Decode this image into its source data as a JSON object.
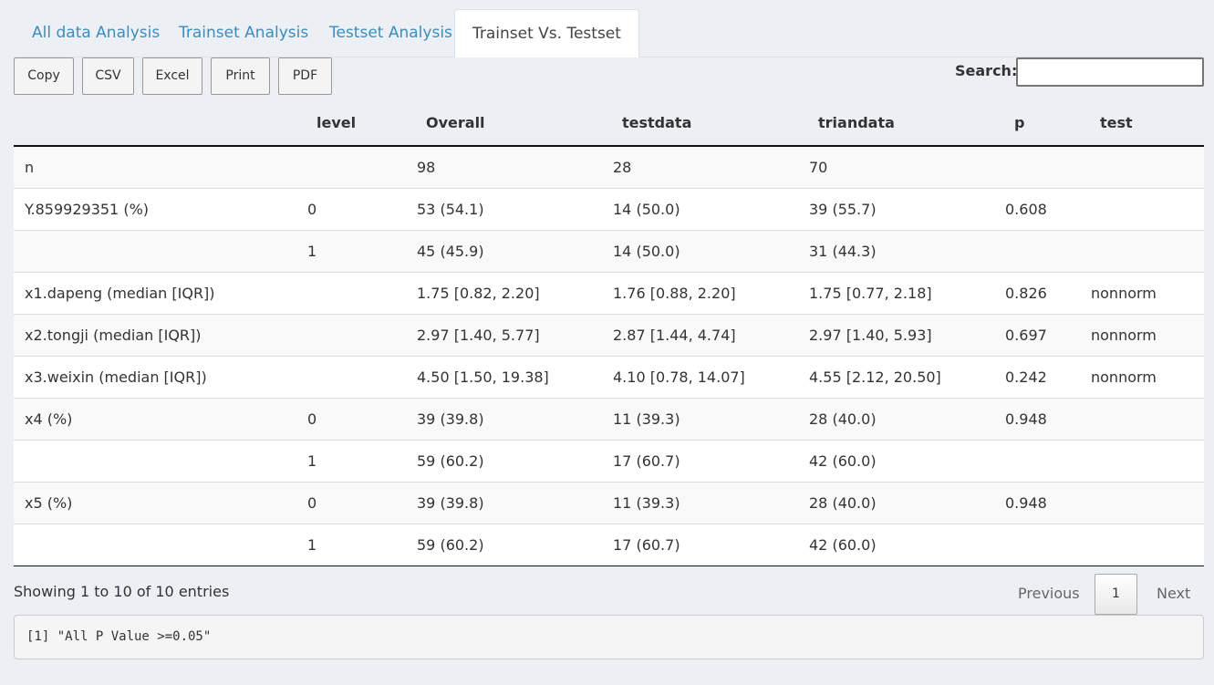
{
  "tabs": [
    {
      "label": "All data Analysis"
    },
    {
      "label": "Trainset Analysis"
    },
    {
      "label": "Testset Analysis"
    },
    {
      "label": "Trainset Vs. Testset",
      "active": true
    }
  ],
  "toolbar": {
    "buttons": [
      "Copy",
      "CSV",
      "Excel",
      "Print",
      "PDF"
    ],
    "search_label": "Search:",
    "search_value": ""
  },
  "table": {
    "columns": [
      "",
      "level",
      "Overall",
      "testdata",
      "triandata",
      "p",
      "test"
    ],
    "rows": [
      [
        "n",
        "",
        "98",
        "28",
        "70",
        "",
        ""
      ],
      [
        "Y.859929351 (%)",
        "0",
        "53 (54.1)",
        "14 (50.0)",
        "39 (55.7)",
        "0.608",
        ""
      ],
      [
        "",
        "1",
        "45 (45.9)",
        "14 (50.0)",
        "31 (44.3)",
        "",
        ""
      ],
      [
        "x1.dapeng (median [IQR])",
        "",
        "1.75 [0.82, 2.20]",
        "1.76 [0.88, 2.20]",
        "1.75 [0.77, 2.18]",
        "0.826",
        "nonnorm"
      ],
      [
        "x2.tongji (median [IQR])",
        "",
        "2.97 [1.40, 5.77]",
        "2.87 [1.44, 4.74]",
        "2.97 [1.40, 5.93]",
        "0.697",
        "nonnorm"
      ],
      [
        "x3.weixin (median [IQR])",
        "",
        "4.50 [1.50, 19.38]",
        "4.10 [0.78, 14.07]",
        "4.55 [2.12, 20.50]",
        "0.242",
        "nonnorm"
      ],
      [
        "x4 (%)",
        "0",
        "39 (39.8)",
        "11 (39.3)",
        "28 (40.0)",
        "0.948",
        ""
      ],
      [
        "",
        "1",
        "59 (60.2)",
        "17 (60.7)",
        "42 (60.0)",
        "",
        ""
      ],
      [
        "x5 (%)",
        "0",
        "39 (39.8)",
        "11 (39.3)",
        "28 (40.0)",
        "0.948",
        ""
      ],
      [
        "",
        "1",
        "59 (60.2)",
        "17 (60.7)",
        "42 (60.0)",
        "",
        ""
      ]
    ]
  },
  "footer": {
    "info": "Showing 1 to 10 of 10 entries",
    "previous": "Previous",
    "page": "1",
    "next": "Next"
  },
  "console_output": "[1] \"All P Value >=0.05\"",
  "colors": {
    "link": "#3c8dbc",
    "background": "#ecf0f5"
  }
}
